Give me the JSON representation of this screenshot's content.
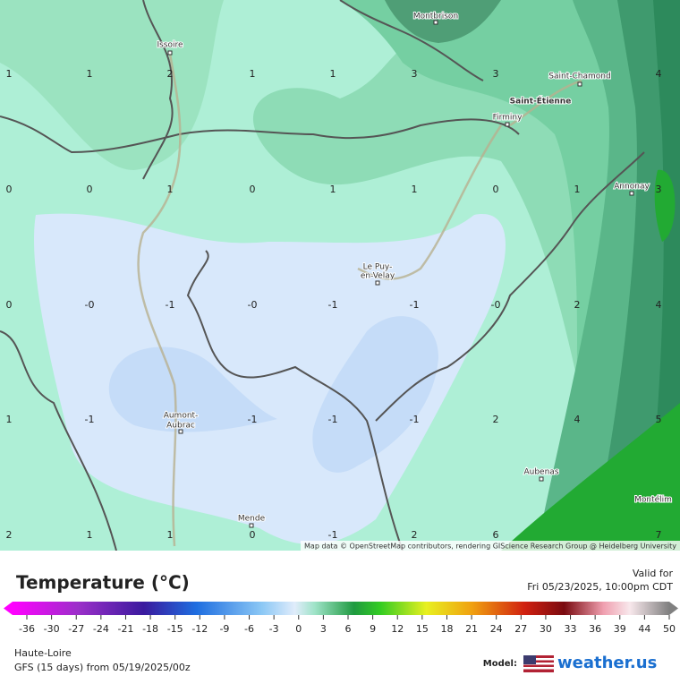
{
  "map": {
    "cities": [
      "Montbrison",
      "Issoire",
      "Saint-Chamond",
      "Saint-Étienne",
      "Firminy",
      "Annonay",
      "Le Puy-",
      "en-Velay",
      "Aumont-",
      "Aubrac",
      "Aubenas",
      "Mende",
      "Montélim"
    ],
    "grid_labels": [
      "1",
      "1",
      "2",
      "1",
      "1",
      "3",
      "3",
      "4",
      "0",
      "0",
      "1",
      "0",
      "1",
      "1",
      "0",
      "1",
      "3",
      "0",
      "-0",
      "-1",
      "-0",
      "-1",
      "-1",
      "-0",
      "2",
      "4",
      "1",
      "-1",
      "-1",
      "-1",
      "-1",
      "2",
      "4",
      "5",
      "2",
      "1",
      "1",
      "0",
      "-1",
      "2",
      "6",
      "7"
    ],
    "attribution": "Map data © OpenStreetMap contributors, rendering GIScience Research Group @ Heidelberg University"
  },
  "footer": {
    "title": "Temperature (°C)",
    "valid_label": "Valid for",
    "valid_time": "Fri 05/23/2025, 10:00pm CDT",
    "legend_ticks": [
      -36,
      -30,
      -27,
      -24,
      -21,
      -18,
      -15,
      -12,
      -9,
      -6,
      -3,
      0,
      3,
      6,
      9,
      12,
      15,
      18,
      21,
      24,
      27,
      30,
      33,
      36,
      39,
      44,
      50
    ],
    "region": "Haute-Loire",
    "model_run": "GFS (15 days) from 05/19/2025/00z",
    "model_label": "Model:",
    "logo": "weather.us"
  }
}
